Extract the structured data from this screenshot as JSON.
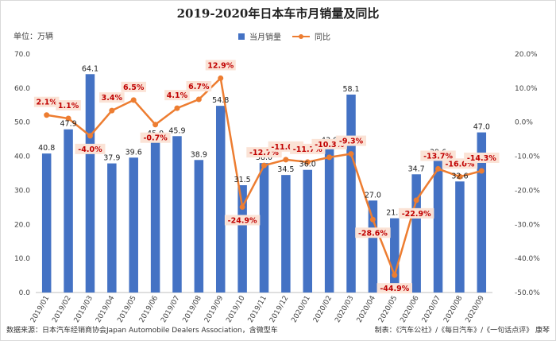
{
  "chart_data": {
    "type": "bar",
    "title": "2019-2020年日本车市月销量及同比",
    "unit_label": "单位：万辆",
    "categories": [
      "2019/01",
      "2019/02",
      "2019/03",
      "2019/04",
      "2019/05",
      "2019/06",
      "2019/07",
      "2019/08",
      "2019/09",
      "2019/10",
      "2019/11",
      "2019/12",
      "2020/01",
      "2020/02",
      "2020/03",
      "2020/04",
      "2020/05",
      "2020/06",
      "2020/07",
      "2020/08",
      "2020/09"
    ],
    "series": [
      {
        "name": "当月销量",
        "type": "bar",
        "axis": "left",
        "color": "#4472c4",
        "values": [
          40.8,
          47.9,
          64.1,
          37.9,
          39.6,
          45.0,
          45.9,
          38.9,
          54.8,
          31.5,
          38.0,
          34.5,
          36.0,
          43.0,
          58.1,
          27.0,
          21.8,
          34.7,
          39.6,
          32.6,
          47.0
        ],
        "labels": [
          "40.8",
          "47.9",
          "64.1",
          "37.9",
          "39.6",
          "45.0",
          "45.9",
          "38.9",
          "54.8",
          "31.5",
          "38.0",
          "34.5",
          "36.0",
          "43.0",
          "58.1",
          "27.0",
          "21.8",
          "34.7",
          "39.6",
          "32.6",
          "47.0"
        ]
      },
      {
        "name": "同比",
        "type": "line",
        "axis": "right",
        "color": "#ed7d31",
        "values": [
          2.1,
          1.1,
          -4.0,
          3.4,
          6.5,
          -0.7,
          4.1,
          6.7,
          12.9,
          -24.9,
          -12.7,
          -11.0,
          -11.7,
          -10.3,
          -9.3,
          -28.6,
          -44.9,
          -22.9,
          -13.7,
          -16.0,
          -14.3
        ],
        "labels": [
          "2.1%",
          "1.1%",
          "-4.0%",
          "3.4%",
          "6.5%",
          "-0.7%",
          "4.1%",
          "6.7%",
          "12.9%",
          "-24.9%",
          "-12.7%",
          "-11.0%",
          "-11.7%",
          "-10.3%",
          "-9.3%",
          "-28.6%",
          "-44.9%",
          "-22.9%",
          "-13.7%",
          "-16.0%",
          "-14.3%"
        ]
      }
    ],
    "y_left": {
      "min": 0,
      "max": 70,
      "ticks": [
        "0.0",
        "10.0",
        "20.0",
        "30.0",
        "40.0",
        "50.0",
        "60.0",
        "70.0"
      ]
    },
    "y_right": {
      "min": -50,
      "max": 20,
      "ticks": [
        "-50.0%",
        "-40.0%",
        "-30.0%",
        "-20.0%",
        "-10.0%",
        "0.0%",
        "10.0%",
        "20.0%"
      ]
    },
    "legend_position": "top-center",
    "grid": false
  },
  "footer": {
    "source": "数据来源：日本汽车经销商协会Japan Automobile Dealers Association，含微型车",
    "credit": "制表：《汽车公社》/《每日汽车》/《一句话点评》 康琴"
  }
}
